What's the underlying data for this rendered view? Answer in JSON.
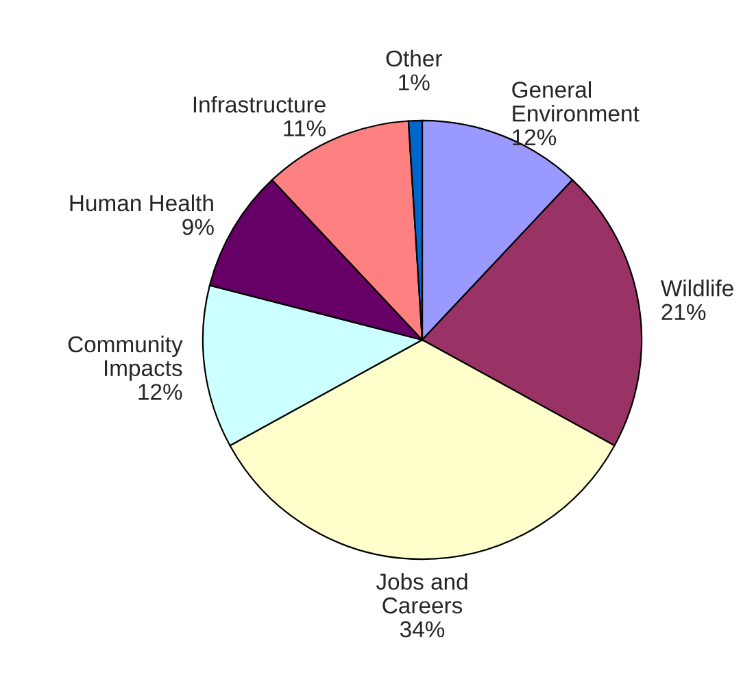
{
  "chart_data": {
    "type": "pie",
    "categories": [
      "General\nEnvironment",
      "Wildlife",
      "Jobs and\nCareers",
      "Community\nImpacts",
      "Human Health",
      "Infrastructure",
      "Other"
    ],
    "values": [
      12,
      21,
      34,
      12,
      9,
      11,
      1
    ],
    "colors": [
      "#9999ff",
      "#993366",
      "#ffffcc",
      "#ccffff",
      "#660066",
      "#ff8080",
      "#0066cc"
    ],
    "value_labels": [
      "12%",
      "21%",
      "34%",
      "12%",
      "9%",
      "11%",
      "1%"
    ],
    "legend": false
  }
}
